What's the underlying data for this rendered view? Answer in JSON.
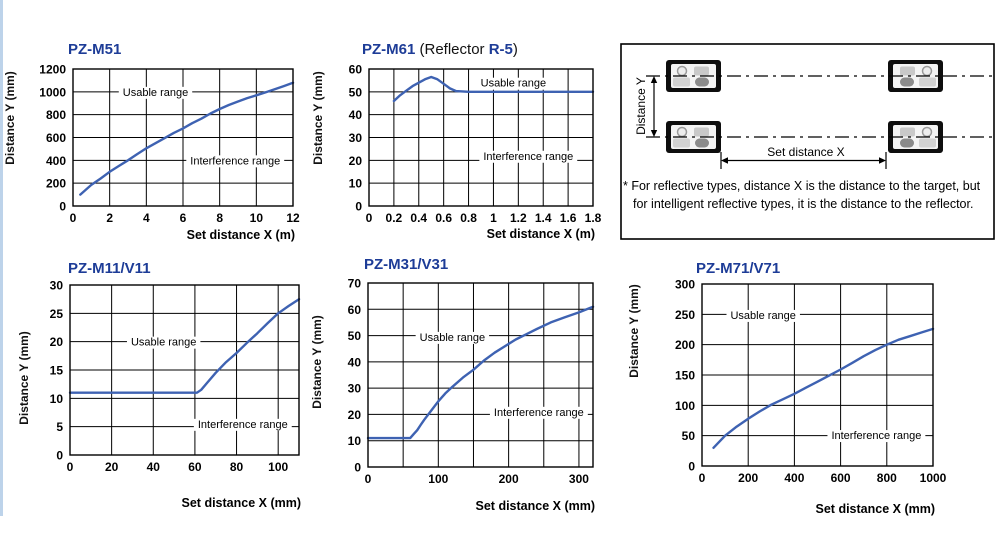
{
  "page": {
    "accent_blue": "#1d3c97",
    "curve_blue": "#3e62b2",
    "edge_strip_color": "#bdd3ea"
  },
  "chart_data": [
    {
      "type": "line",
      "title": "PZ-M51",
      "xlabel": "Set distance X (m)",
      "ylabel": "Distance Y (mm)",
      "xlim": [
        0,
        12
      ],
      "ylim": [
        0,
        1200
      ],
      "xticks": {
        "values": [
          0,
          2,
          4,
          6,
          8,
          10,
          12
        ],
        "labels": [
          "0",
          "2",
          "4",
          "6",
          "8",
          "10",
          "12"
        ]
      },
      "yticks": {
        "values": [
          0,
          200,
          400,
          600,
          800,
          1000,
          1200
        ],
        "labels": [
          "0",
          "200",
          "400",
          "600",
          "800",
          "1000",
          "1200"
        ]
      },
      "xgrid": [
        2,
        4,
        6,
        8,
        10
      ],
      "ygrid": [
        200,
        400,
        600,
        800,
        1000
      ],
      "series": [
        {
          "name": "interference-boundary",
          "points": [
            [
              0.4,
              100
            ],
            [
              1,
              185
            ],
            [
              1.5,
              240
            ],
            [
              2,
              300
            ],
            [
              2.5,
              350
            ],
            [
              3,
              400
            ],
            [
              3.5,
              455
            ],
            [
              4,
              505
            ],
            [
              4.5,
              550
            ],
            [
              5,
              595
            ],
            [
              5.5,
              640
            ],
            [
              6,
              680
            ],
            [
              6.5,
              725
            ],
            [
              7,
              765
            ],
            [
              7.5,
              810
            ],
            [
              8,
              850
            ],
            [
              8.5,
              885
            ],
            [
              9,
              915
            ],
            [
              9.5,
              945
            ],
            [
              10,
              970
            ],
            [
              10.5,
              995
            ],
            [
              11,
              1022
            ],
            [
              11.5,
              1050
            ],
            [
              12,
              1080
            ]
          ]
        }
      ],
      "annotations": [
        {
          "text": "Usable range",
          "x": 4.5,
          "y": 1000
        },
        {
          "text": "Interference range",
          "x": 8.85,
          "y": 400
        }
      ]
    },
    {
      "type": "line",
      "title": "PZ-M61",
      "title_note_pre": " (Reflector ",
      "title_note_model": "R-5",
      "title_note_post": ")",
      "xlabel": "Set distance X (m)",
      "ylabel": "Distance Y (mm)",
      "xlim": [
        0,
        1.8
      ],
      "ylim": [
        0,
        60
      ],
      "xticks": {
        "values": [
          0,
          0.2,
          0.4,
          0.6,
          0.8,
          1,
          1.2,
          1.4,
          1.6,
          1.8
        ],
        "labels": [
          "0",
          "0.2",
          "0.4",
          "0.6",
          "0.8",
          "1",
          "1.2",
          "1.4",
          "1.6",
          "1.8"
        ]
      },
      "yticks": {
        "values": [
          0,
          10,
          20,
          30,
          40,
          50,
          60
        ],
        "labels": [
          "0",
          "10",
          "20",
          "30",
          "40",
          "50",
          "60"
        ]
      },
      "xgrid": [
        0.2,
        0.4,
        0.6,
        0.8,
        1,
        1.2,
        1.4,
        1.6
      ],
      "ygrid": [
        10,
        20,
        30,
        40,
        50
      ],
      "series": [
        {
          "name": "interference-boundary",
          "points": [
            [
              0.2,
              46
            ],
            [
              0.25,
              48.5
            ],
            [
              0.3,
              50.5
            ],
            [
              0.35,
              52.5
            ],
            [
              0.4,
              54
            ],
            [
              0.45,
              55.5
            ],
            [
              0.5,
              56.5
            ],
            [
              0.55,
              55.5
            ],
            [
              0.6,
              53.5
            ],
            [
              0.65,
              51.5
            ],
            [
              0.7,
              50.3
            ],
            [
              0.8,
              50
            ],
            [
              1.8,
              50
            ]
          ]
        }
      ],
      "annotations": [
        {
          "text": "Usable range",
          "x": 1.16,
          "y": 54
        },
        {
          "text": "Interference range",
          "x": 1.28,
          "y": 22
        }
      ]
    },
    {
      "type": "line",
      "title": "PZ-M11/V11",
      "xlabel": "Set distance X (mm)",
      "ylabel": "Distance Y (mm)",
      "xlim": [
        0,
        110
      ],
      "ylim": [
        0,
        30
      ],
      "xticks": {
        "values": [
          0,
          20,
          40,
          60,
          80,
          100
        ],
        "labels": [
          "0",
          "20",
          "40",
          "60",
          "80",
          "100"
        ]
      },
      "yticks": {
        "values": [
          0,
          5,
          10,
          15,
          20,
          25,
          30
        ],
        "labels": [
          "0",
          "5",
          "10",
          "15",
          "20",
          "25",
          "30"
        ]
      },
      "xgrid": [
        20,
        40,
        60,
        80,
        100
      ],
      "ygrid": [
        5,
        10,
        15,
        20,
        25
      ],
      "series": [
        {
          "name": "interference-boundary",
          "points": [
            [
              0,
              11
            ],
            [
              61,
              11
            ],
            [
              63,
              11.5
            ],
            [
              66,
              12.8
            ],
            [
              70,
              14.5
            ],
            [
              75,
              16.4
            ],
            [
              80,
              18
            ],
            [
              85,
              19.8
            ],
            [
              90,
              21.5
            ],
            [
              95,
              23.3
            ],
            [
              100,
              25
            ],
            [
              105,
              26.3
            ],
            [
              110,
              27.5
            ]
          ]
        }
      ],
      "annotations": [
        {
          "text": "Usable range",
          "x": 45,
          "y": 20
        },
        {
          "text": "Interference range",
          "x": 83,
          "y": 5.5
        }
      ]
    },
    {
      "type": "line",
      "title": "PZ-M31/V31",
      "xlabel": "Set distance X (mm)",
      "ylabel": "Distance Y (mm)",
      "xlim": [
        0,
        320
      ],
      "ylim": [
        0,
        70
      ],
      "xticks": {
        "values": [
          0,
          100,
          200,
          300
        ],
        "labels": [
          "0",
          "100",
          "200",
          "300"
        ]
      },
      "yticks": {
        "values": [
          0,
          10,
          20,
          30,
          40,
          50,
          60,
          70
        ],
        "labels": [
          "0",
          "10",
          "20",
          "30",
          "40",
          "50",
          "60",
          "70"
        ]
      },
      "xgrid": [
        50,
        100,
        150,
        200,
        250,
        300
      ],
      "ygrid": [
        10,
        20,
        30,
        40,
        50,
        60
      ],
      "series": [
        {
          "name": "interference-boundary",
          "points": [
            [
              0,
              11
            ],
            [
              60,
              11
            ],
            [
              65,
              12.5
            ],
            [
              70,
              14
            ],
            [
              75,
              16
            ],
            [
              80,
              18
            ],
            [
              90,
              21.5
            ],
            [
              100,
              25
            ],
            [
              110,
              28
            ],
            [
              120,
              30.5
            ],
            [
              135,
              34
            ],
            [
              150,
              37
            ],
            [
              165,
              40.5
            ],
            [
              180,
              43.5
            ],
            [
              195,
              46
            ],
            [
              210,
              48.5
            ],
            [
              225,
              50.5
            ],
            [
              240,
              52.5
            ],
            [
              260,
              55
            ],
            [
              280,
              57
            ],
            [
              300,
              58.8
            ],
            [
              320,
              61
            ]
          ]
        }
      ],
      "annotations": [
        {
          "text": "Usable range",
          "x": 120,
          "y": 49.5
        },
        {
          "text": "Interference range",
          "x": 243,
          "y": 21
        }
      ]
    },
    {
      "type": "line",
      "title": "PZ-M71/V71",
      "xlabel": "Set distance X (mm)",
      "ylabel": "Distance Y (mm)",
      "xlim": [
        0,
        1000
      ],
      "ylim": [
        0,
        300
      ],
      "xticks": {
        "values": [
          0,
          200,
          400,
          600,
          800,
          1000
        ],
        "labels": [
          "0",
          "200",
          "400",
          "600",
          "800",
          "1000"
        ]
      },
      "yticks": {
        "values": [
          0,
          50,
          100,
          150,
          200,
          250,
          300
        ],
        "labels": [
          "0",
          "50",
          "100",
          "150",
          "200",
          "250",
          "300"
        ]
      },
      "xgrid": [
        200,
        400,
        600,
        800
      ],
      "ygrid": [
        50,
        100,
        150,
        200,
        250
      ],
      "series": [
        {
          "name": "interference-boundary",
          "points": [
            [
              50,
              30
            ],
            [
              100,
              50
            ],
            [
              150,
              65
            ],
            [
              200,
              78
            ],
            [
              250,
              90
            ],
            [
              300,
              101
            ],
            [
              350,
              110
            ],
            [
              400,
              119
            ],
            [
              450,
              129
            ],
            [
              500,
              139
            ],
            [
              550,
              149
            ],
            [
              600,
              159
            ],
            [
              650,
              170
            ],
            [
              700,
              181
            ],
            [
              750,
              191
            ],
            [
              800,
              200
            ],
            [
              850,
              208
            ],
            [
              900,
              214
            ],
            [
              950,
              220
            ],
            [
              1000,
              226
            ]
          ]
        }
      ],
      "annotations": [
        {
          "text": "Usable range",
          "x": 265,
          "y": 249
        },
        {
          "text": "Interference range",
          "x": 755,
          "y": 51
        }
      ]
    }
  ],
  "diagram": {
    "distance_y": "Distance Y",
    "set_distance_x": "Set distance X",
    "note": "* For reflective types, distance X is the distance to the target, but for intelligent reflective types, it is the distance to the reflector."
  }
}
